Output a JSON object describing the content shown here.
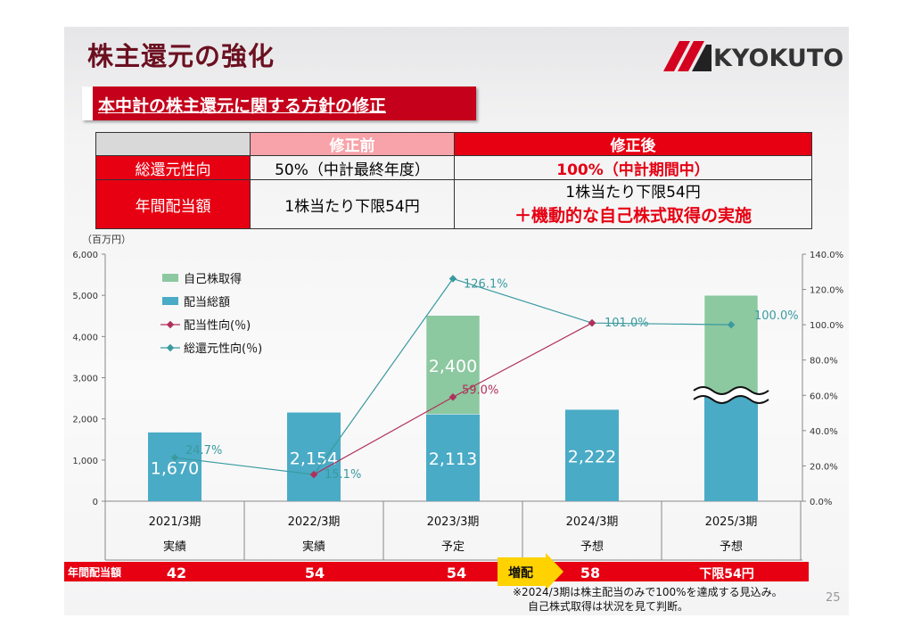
{
  "title": "株主還元の強化",
  "logo_text": "KYOKUTO",
  "subtitle": "本中計の株主還元に関する方針の修正",
  "policy_table": {
    "header_before": "修正前",
    "header_after": "修正後",
    "rows": [
      {
        "label": "総還元性向",
        "before": "50%（中計最終年度）",
        "after_lines": [
          "100%（中計期間中）"
        ]
      },
      {
        "label": "年間配当額",
        "before": "1株当たり下限54円",
        "after_lines": [
          "1株当たり下限54円",
          "＋機動的な自己株式取得の実施"
        ]
      }
    ]
  },
  "chart_data": {
    "type": "bar",
    "y_unit_label": "（百万円）",
    "ylim": [
      0,
      6000
    ],
    "yticks": [
      "0",
      "1,000",
      "2,000",
      "3,000",
      "4,000",
      "5,000",
      "6,000"
    ],
    "y2lim": [
      0,
      140
    ],
    "y2ticks": [
      "0.0%",
      "20.0%",
      "40.0%",
      "60.0%",
      "80.0%",
      "100.0%",
      "120.0%",
      "140.0%"
    ],
    "categories": [
      "2021/3期",
      "2022/3期",
      "2023/3期",
      "2024/3期",
      "2025/3期"
    ],
    "category_status": [
      "実績",
      "実績",
      "予定",
      "予想",
      "予想"
    ],
    "series": [
      {
        "name": "自己株取得",
        "kind": "bar",
        "color": "#8cc8a0",
        "values": [
          0,
          0,
          2400,
          0,
          2400
        ],
        "labels": [
          "",
          "",
          "2,400",
          "",
          ""
        ]
      },
      {
        "name": "配当総額",
        "kind": "bar",
        "color": "#4aabc6",
        "values": [
          1670,
          2154,
          2113,
          2222,
          2600
        ],
        "labels": [
          "1,670",
          "2,154",
          "2,113",
          "2,222",
          ""
        ]
      },
      {
        "name": "配当性向(％)",
        "kind": "line",
        "color": "#b0305a",
        "values": [
          null,
          15.1,
          59.0,
          101.0,
          null
        ],
        "labels": [
          "",
          "",
          "59.0%",
          "",
          ""
        ]
      },
      {
        "name": "総還元性向(％)",
        "kind": "line",
        "color": "#3a9aa0",
        "values": [
          24.7,
          15.1,
          126.1,
          101.0,
          100.0
        ],
        "labels": [
          "24.7%",
          "15.1%",
          "126.1%",
          "101.0%",
          "100.0%"
        ]
      }
    ],
    "axis_break_category": "2025/3期",
    "dividend_row": {
      "label": "年間配当額",
      "values": [
        "42",
        "54",
        "54",
        "58",
        "下限54円"
      ],
      "arrow_label": "増配"
    },
    "legend_position": "top-left"
  },
  "footnote_lines": [
    "※2024/3期は株主配当のみで100%を達成する見込み。",
    "自己株式取得は状況を見て判断。"
  ],
  "page_number": "25"
}
